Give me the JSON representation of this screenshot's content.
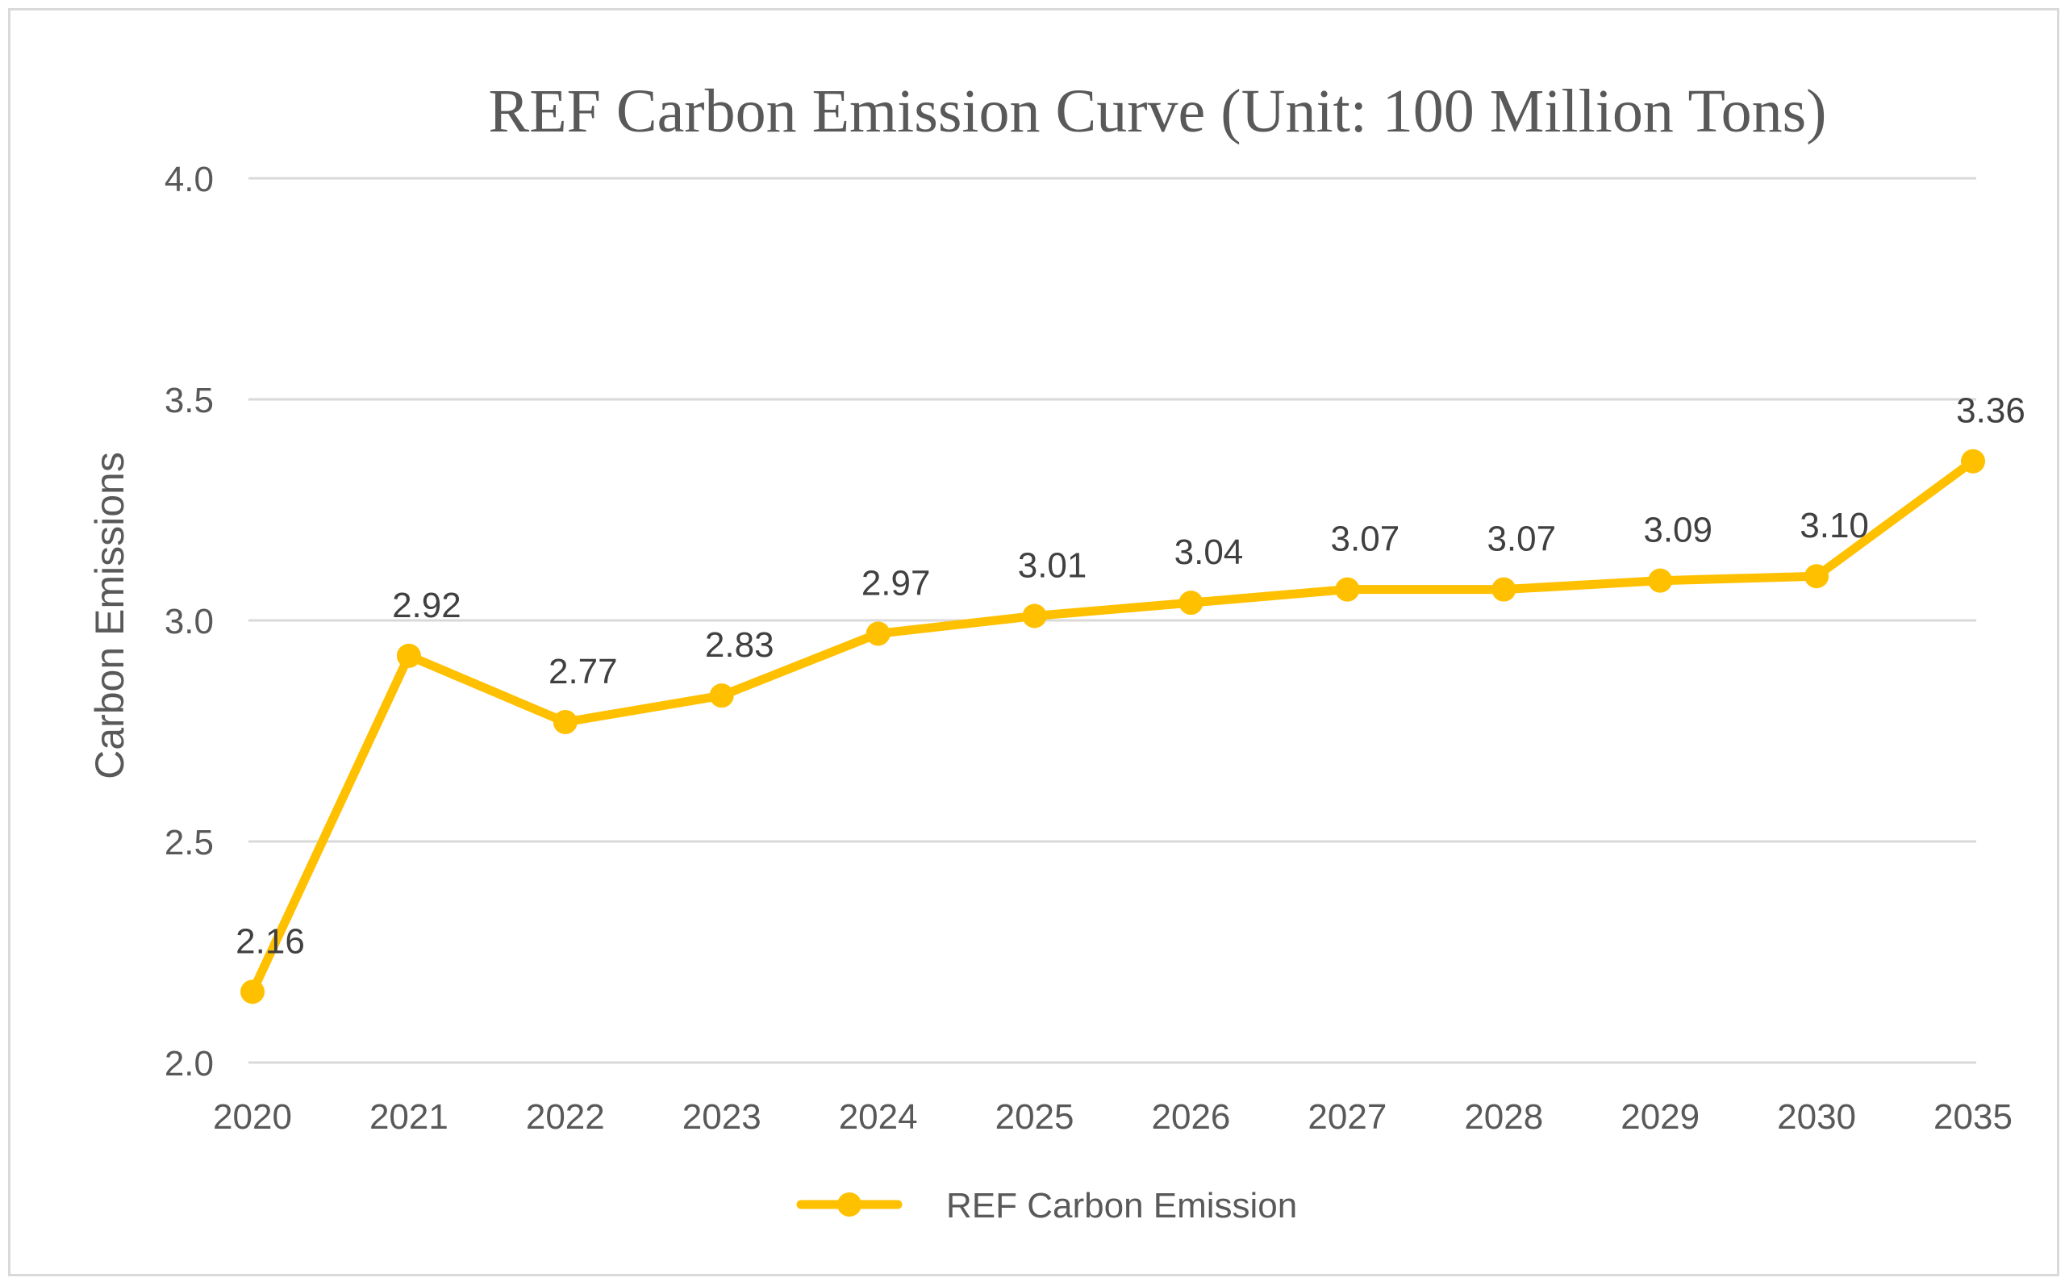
{
  "chart_data": {
    "type": "line",
    "title": "REF Carbon Emission Curve (Unit: 100 Million Tons)",
    "xlabel": "",
    "ylabel": "Carbon Emissions",
    "ylim": [
      2.0,
      4.0
    ],
    "yticks": [
      "2.0",
      "2.5",
      "3.0",
      "3.5",
      "4.0"
    ],
    "ytick_values": [
      2.0,
      2.5,
      3.0,
      3.5,
      4.0
    ],
    "categories": [
      "2020",
      "2021",
      "2022",
      "2023",
      "2024",
      "2025",
      "2026",
      "2027",
      "2028",
      "2029",
      "2030",
      "2035"
    ],
    "grid": true,
    "legend_position": "bottom",
    "series": [
      {
        "name": "REF Carbon Emission",
        "color": "#FFC000",
        "values": [
          2.16,
          2.92,
          2.77,
          2.83,
          2.97,
          3.01,
          3.04,
          3.07,
          3.07,
          3.09,
          3.1,
          3.36
        ],
        "labels": [
          "2.16",
          "2.92",
          "2.77",
          "2.83",
          "2.97",
          "3.01",
          "3.04",
          "3.07",
          "3.07",
          "3.09",
          "3.10",
          "3.36"
        ]
      }
    ]
  }
}
